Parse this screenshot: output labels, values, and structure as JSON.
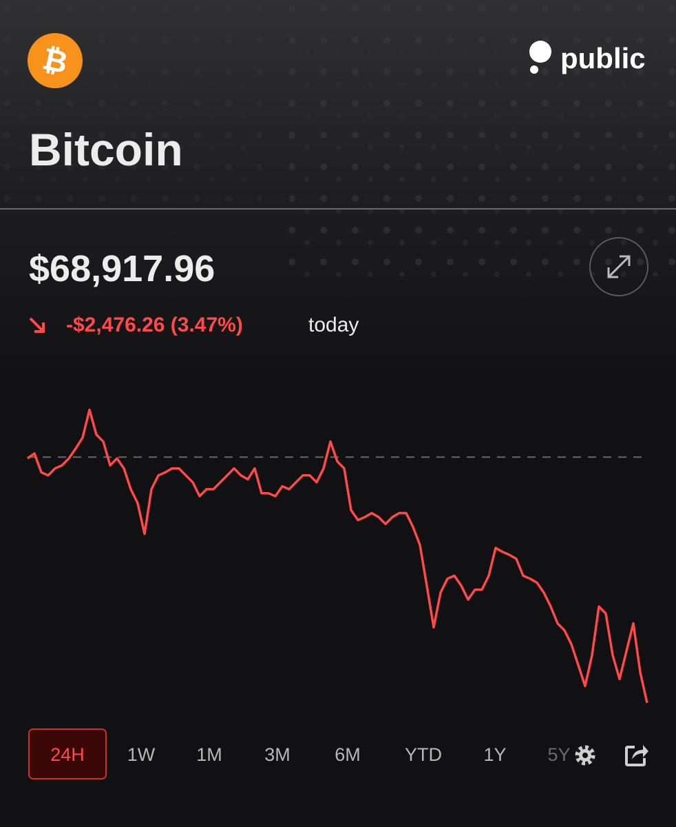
{
  "header": {
    "logo_symbol": "₿",
    "brand": "public",
    "title": "Bitcoin"
  },
  "quote": {
    "price": "$68,917.96",
    "change": "-$2,476.26 (3.47%)",
    "change_suffix": "today"
  },
  "chart_data": {
    "type": "line",
    "color": "#ff4a4a",
    "reference_line": 71394,
    "ylim": [
      68850,
      72110
    ],
    "values": [
      71380,
      71430,
      71240,
      71210,
      71280,
      71310,
      71380,
      71480,
      71590,
      71870,
      71620,
      71550,
      71310,
      71380,
      71280,
      71070,
      70930,
      70620,
      71070,
      71210,
      71240,
      71280,
      71280,
      71210,
      71140,
      71000,
      71070,
      71070,
      71140,
      71210,
      71280,
      71210,
      71170,
      71280,
      71030,
      71030,
      71000,
      71100,
      71070,
      71140,
      71210,
      71210,
      71140,
      71280,
      71550,
      71350,
      71280,
      70860,
      70760,
      70790,
      70830,
      70790,
      70720,
      70790,
      70830,
      70830,
      70690,
      70510,
      70100,
      69680,
      70030,
      70170,
      70200,
      70100,
      69960,
      70060,
      70060,
      70200,
      70480,
      70440,
      70410,
      70370,
      70200,
      70170,
      70130,
      70030,
      69890,
      69720,
      69650,
      69510,
      69300,
      69090,
      69400,
      69890,
      69820,
      69400,
      69160,
      69440,
      69720,
      69230,
      68920
    ]
  },
  "range_tabs": {
    "options": [
      "24H",
      "1W",
      "1M",
      "3M",
      "6M",
      "YTD",
      "1Y",
      "5Y"
    ],
    "selected": 0
  }
}
